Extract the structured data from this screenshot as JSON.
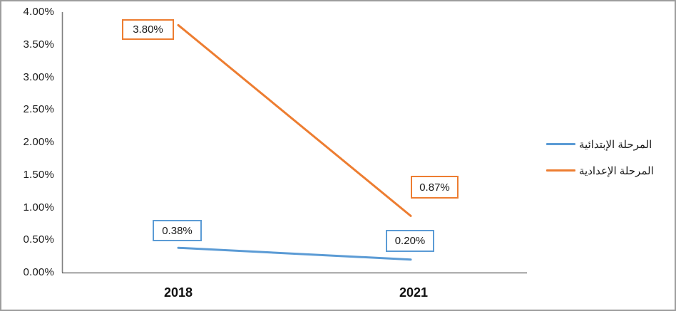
{
  "chart_data": {
    "type": "line",
    "title": "",
    "categories": [
      "2018",
      "2021"
    ],
    "series": [
      {
        "name": "المرحلة الإبتدائية",
        "values": [
          0.38,
          0.2
        ],
        "labels": [
          "0.38%",
          "0.20%"
        ],
        "color": "#5B9BD5"
      },
      {
        "name": "المرحلة الإعدادية",
        "values": [
          3.8,
          0.87
        ],
        "labels": [
          "3.80%",
          "0.87%"
        ],
        "color": "#ED7D31"
      }
    ],
    "ylim": [
      0,
      4
    ],
    "y_ticks": [
      "4.00%",
      "3.50%",
      "3.00%",
      "2.50%",
      "2.00%",
      "1.50%",
      "1.00%",
      "0.50%",
      "0.00%"
    ],
    "xlabel": "",
    "ylabel": "",
    "grid": false,
    "legend_position": "right",
    "axis_color": "#808080",
    "data_label_style": "boxed, white fill, border colored per series"
  }
}
